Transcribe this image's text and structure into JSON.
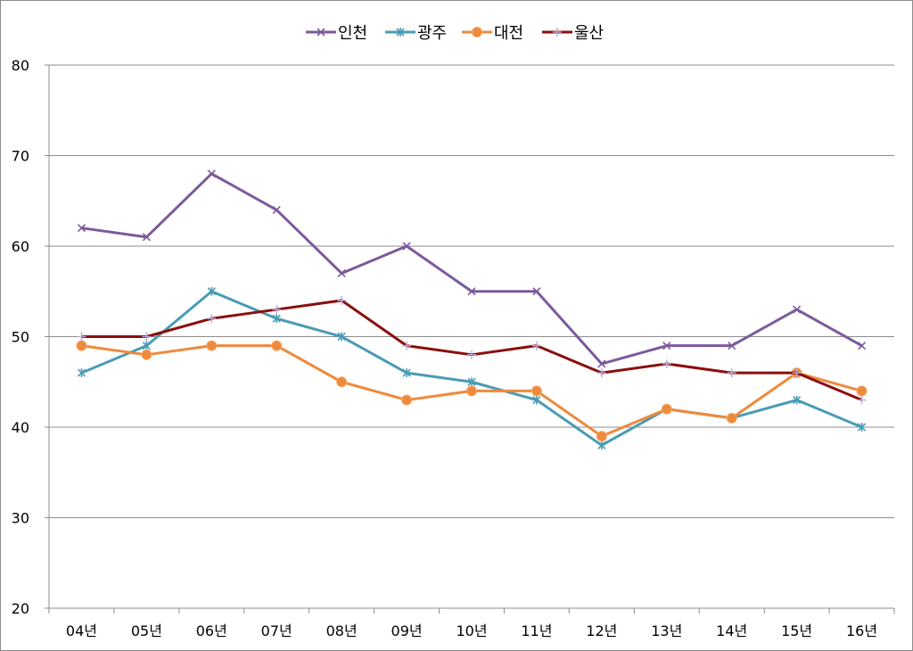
{
  "chart_data": {
    "type": "line",
    "title": "",
    "xlabel": "",
    "ylabel": "",
    "categories": [
      "04년",
      "05년",
      "06년",
      "07년",
      "08년",
      "09년",
      "10년",
      "11년",
      "12년",
      "13년",
      "14년",
      "15년",
      "16년"
    ],
    "ylim": [
      20,
      80
    ],
    "yticks": [
      20,
      30,
      40,
      50,
      60,
      70,
      80
    ],
    "grid": true,
    "legend_position": "top-center",
    "series": [
      {
        "name": "인천",
        "color": "#7b5a9c",
        "marker": "x",
        "values": [
          62,
          61,
          68,
          64,
          57,
          60,
          55,
          55,
          47,
          49,
          49,
          53,
          49
        ]
      },
      {
        "name": "광주",
        "color": "#4a9bb5",
        "marker": "star",
        "values": [
          46,
          49,
          55,
          52,
          50,
          46,
          45,
          43,
          38,
          42,
          41,
          43,
          40
        ]
      },
      {
        "name": "대전",
        "color": "#ee8a3c",
        "marker": "circle",
        "values": [
          49,
          48,
          49,
          49,
          45,
          43,
          44,
          44,
          39,
          42,
          41,
          46,
          44
        ]
      },
      {
        "name": "울산",
        "color": "#8b0e0e",
        "marker": "plus",
        "values": [
          50,
          50,
          52,
          53,
          54,
          49,
          48,
          49,
          46,
          47,
          46,
          46,
          43
        ]
      }
    ]
  }
}
